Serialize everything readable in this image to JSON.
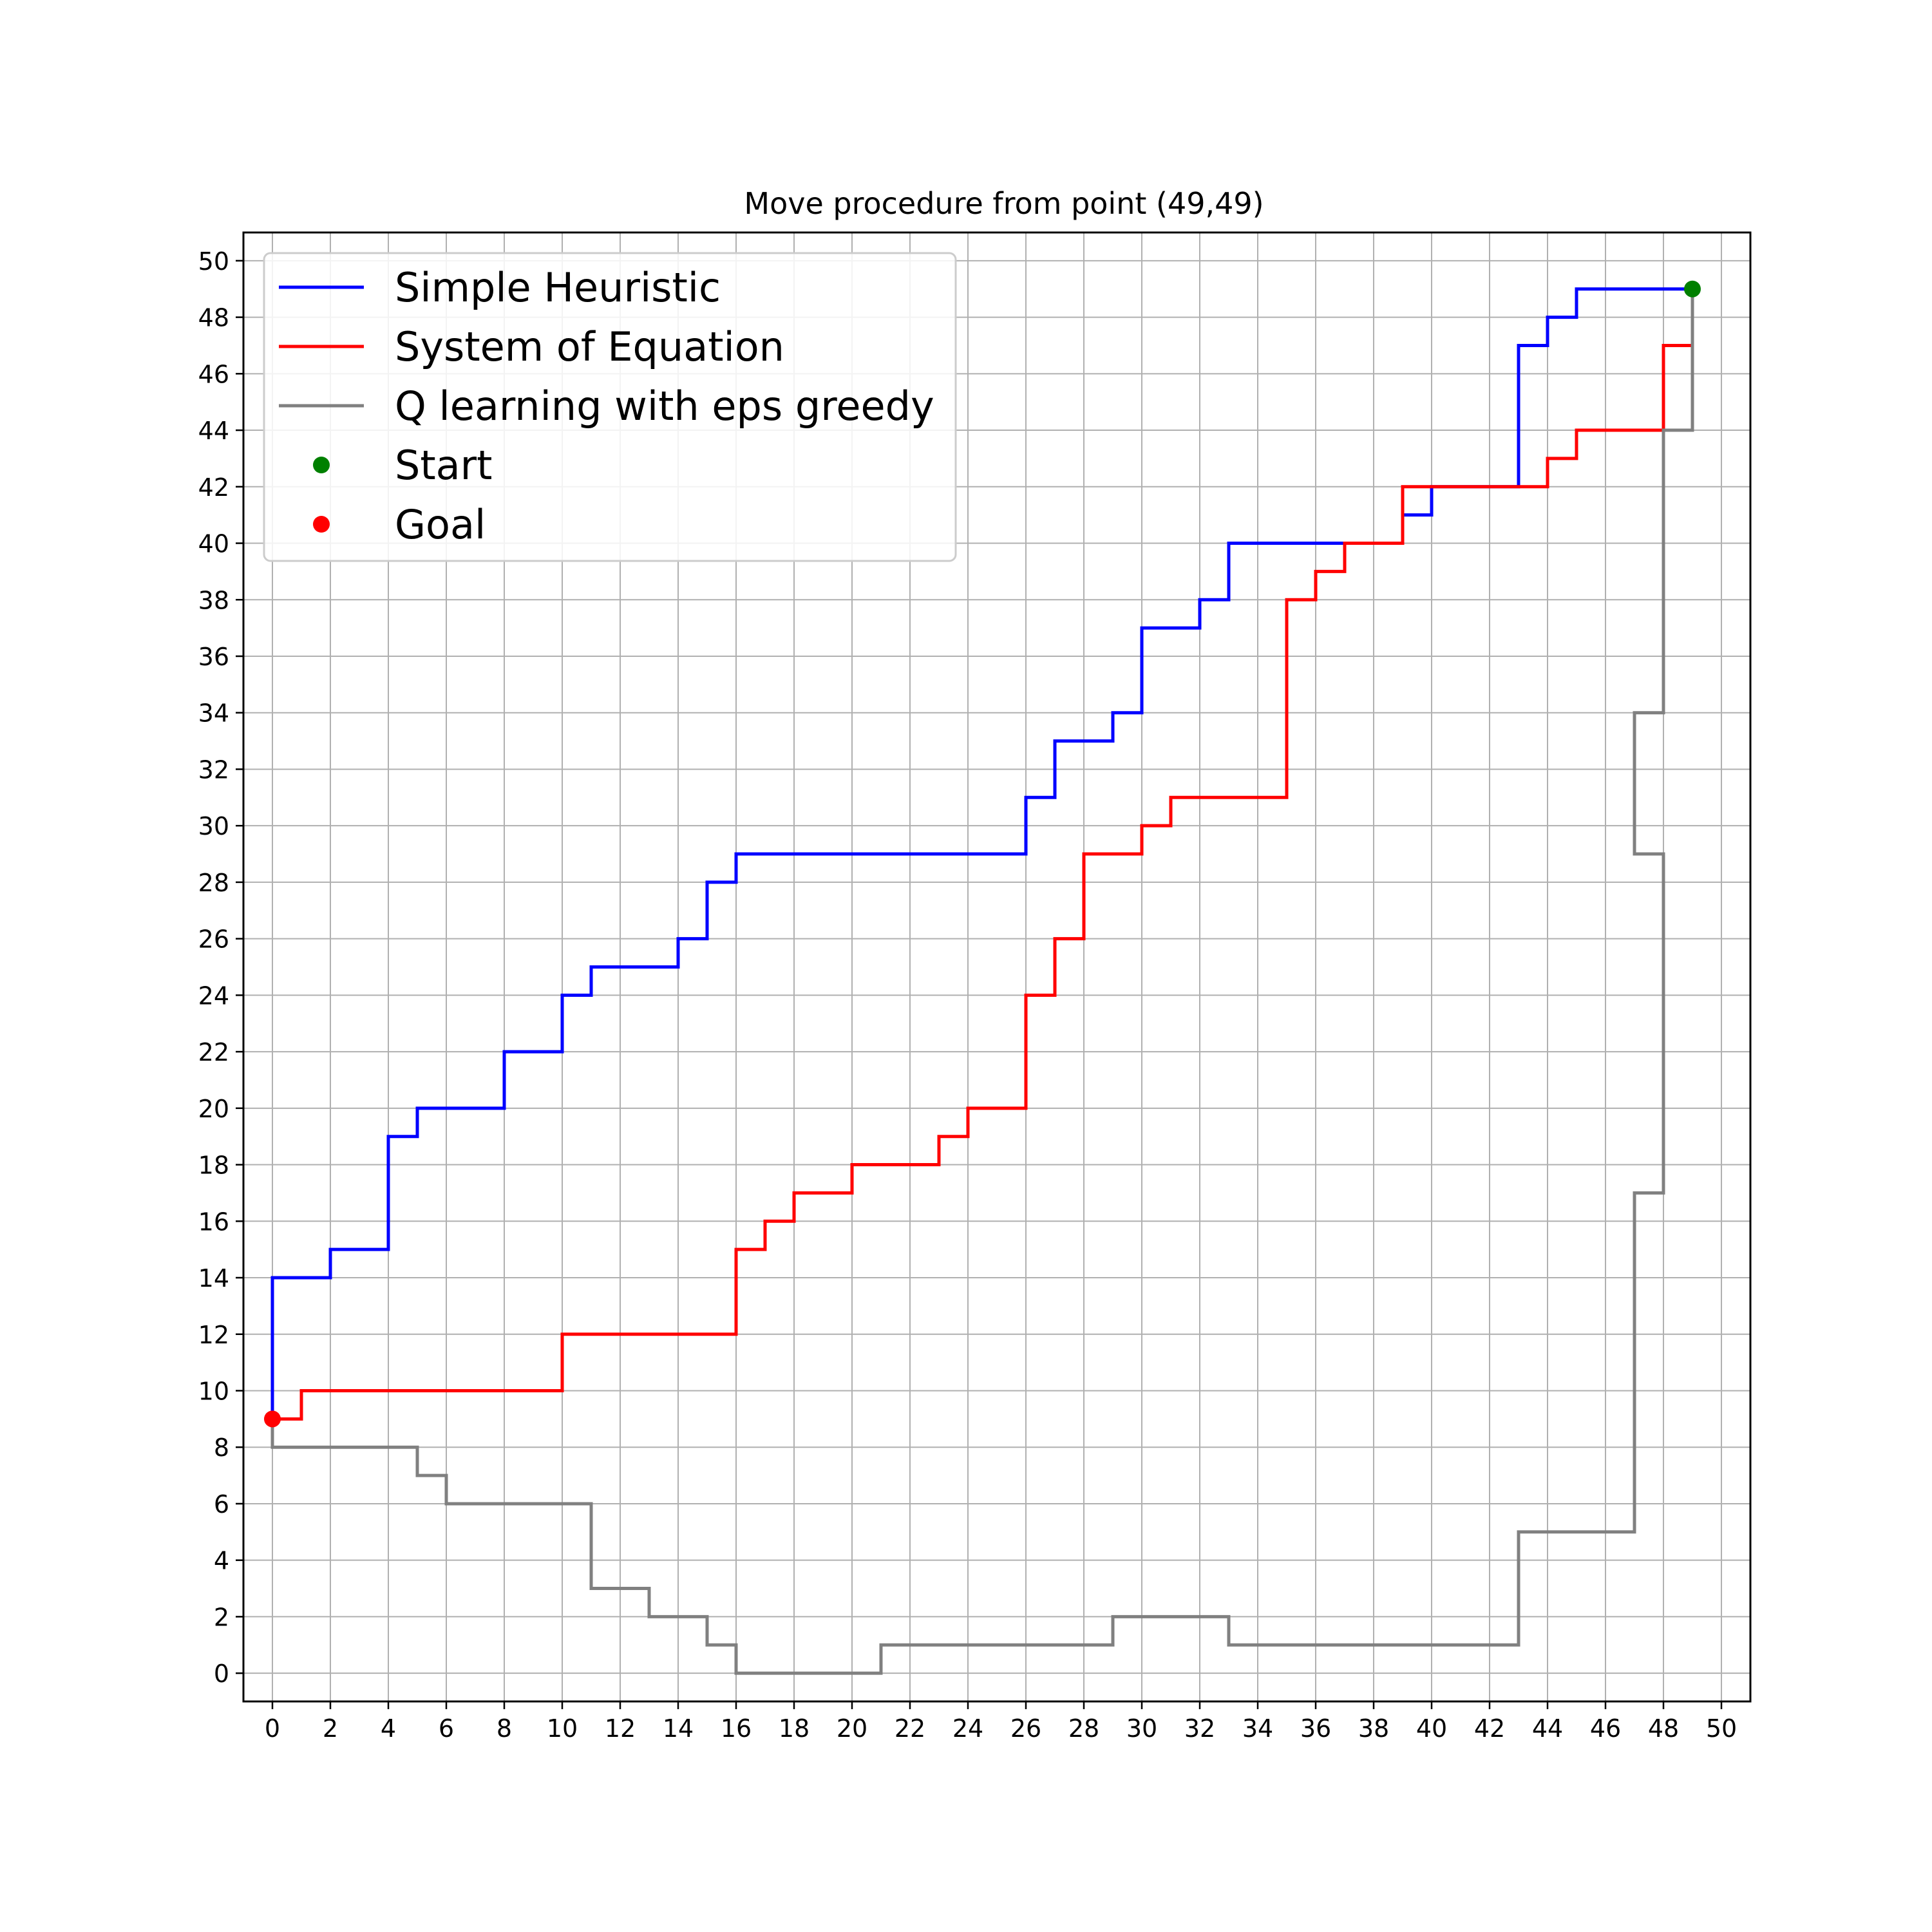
{
  "chart_data": {
    "type": "line",
    "title": "Move procedure from point (49,49)",
    "xlabel": "",
    "ylabel": "",
    "xlim": [
      -1,
      51
    ],
    "ylim": [
      -1,
      51
    ],
    "x_ticks": [
      0,
      2,
      4,
      6,
      8,
      10,
      12,
      14,
      16,
      18,
      20,
      22,
      24,
      26,
      28,
      30,
      32,
      34,
      36,
      38,
      40,
      42,
      44,
      46,
      48,
      50
    ],
    "y_ticks": [
      0,
      2,
      4,
      6,
      8,
      10,
      12,
      14,
      16,
      18,
      20,
      22,
      24,
      26,
      28,
      30,
      32,
      34,
      36,
      38,
      40,
      42,
      44,
      46,
      48,
      50
    ],
    "grid": true,
    "legend_position": "top-left",
    "series": [
      {
        "name": "Simple Heuristic",
        "color": "#0000ff",
        "points": [
          [
            49,
            49
          ],
          [
            45,
            49
          ],
          [
            45,
            48
          ],
          [
            44,
            48
          ],
          [
            44,
            47
          ],
          [
            43,
            47
          ],
          [
            43,
            42
          ],
          [
            40,
            42
          ],
          [
            40,
            41
          ],
          [
            39,
            41
          ],
          [
            39,
            40
          ],
          [
            33,
            40
          ],
          [
            33,
            38
          ],
          [
            32,
            38
          ],
          [
            32,
            37
          ],
          [
            30,
            37
          ],
          [
            30,
            34
          ],
          [
            29,
            34
          ],
          [
            29,
            33
          ],
          [
            27,
            33
          ],
          [
            27,
            31
          ],
          [
            26,
            31
          ],
          [
            26,
            29
          ],
          [
            16,
            29
          ],
          [
            16,
            28
          ],
          [
            15,
            28
          ],
          [
            15,
            26
          ],
          [
            14,
            26
          ],
          [
            14,
            25
          ],
          [
            11,
            25
          ],
          [
            11,
            24
          ],
          [
            10,
            24
          ],
          [
            10,
            22
          ],
          [
            8,
            22
          ],
          [
            8,
            20
          ],
          [
            5,
            20
          ],
          [
            5,
            19
          ],
          [
            4,
            19
          ],
          [
            4,
            15
          ],
          [
            2,
            15
          ],
          [
            2,
            14
          ],
          [
            0,
            14
          ],
          [
            0,
            9
          ]
        ]
      },
      {
        "name": "System of Equation",
        "color": "#ff0000",
        "points": [
          [
            49,
            47
          ],
          [
            48,
            47
          ],
          [
            48,
            44
          ],
          [
            45,
            44
          ],
          [
            45,
            43
          ],
          [
            44,
            43
          ],
          [
            44,
            42
          ],
          [
            39,
            42
          ],
          [
            39,
            40
          ],
          [
            37,
            40
          ],
          [
            37,
            39
          ],
          [
            36,
            39
          ],
          [
            36,
            38
          ],
          [
            35,
            38
          ],
          [
            35,
            31
          ],
          [
            31,
            31
          ],
          [
            31,
            30
          ],
          [
            30,
            30
          ],
          [
            30,
            29
          ],
          [
            28,
            29
          ],
          [
            28,
            26
          ],
          [
            27,
            26
          ],
          [
            27,
            24
          ],
          [
            26,
            24
          ],
          [
            26,
            20
          ],
          [
            24,
            20
          ],
          [
            24,
            19
          ],
          [
            23,
            19
          ],
          [
            23,
            18
          ],
          [
            20,
            18
          ],
          [
            20,
            17
          ],
          [
            18,
            17
          ],
          [
            18,
            16
          ],
          [
            17,
            16
          ],
          [
            17,
            15
          ],
          [
            16,
            15
          ],
          [
            16,
            12
          ],
          [
            10,
            12
          ],
          [
            10,
            10
          ],
          [
            1,
            10
          ],
          [
            1,
            9
          ],
          [
            0,
            9
          ]
        ]
      },
      {
        "name": "Q learning with eps greedy",
        "color": "#808080",
        "points": [
          [
            49,
            49
          ],
          [
            49,
            44
          ],
          [
            48,
            44
          ],
          [
            48,
            34
          ],
          [
            47,
            34
          ],
          [
            47,
            29
          ],
          [
            48,
            29
          ],
          [
            48,
            17
          ],
          [
            47,
            17
          ],
          [
            47,
            5
          ],
          [
            43,
            5
          ],
          [
            43,
            1
          ],
          [
            33,
            1
          ],
          [
            33,
            2
          ],
          [
            29,
            2
          ],
          [
            29,
            1
          ],
          [
            21,
            1
          ],
          [
            21,
            0
          ],
          [
            16,
            0
          ],
          [
            16,
            1
          ],
          [
            15,
            1
          ],
          [
            15,
            2
          ],
          [
            13,
            2
          ],
          [
            13,
            3
          ],
          [
            11,
            3
          ],
          [
            11,
            6
          ],
          [
            6,
            6
          ],
          [
            6,
            7
          ],
          [
            5,
            7
          ],
          [
            5,
            8
          ],
          [
            0,
            8
          ],
          [
            0,
            9
          ]
        ]
      }
    ],
    "markers": [
      {
        "name": "Start",
        "color": "#008000",
        "x": 49,
        "y": 49
      },
      {
        "name": "Goal",
        "color": "#ff0000",
        "x": 0,
        "y": 9
      }
    ]
  }
}
